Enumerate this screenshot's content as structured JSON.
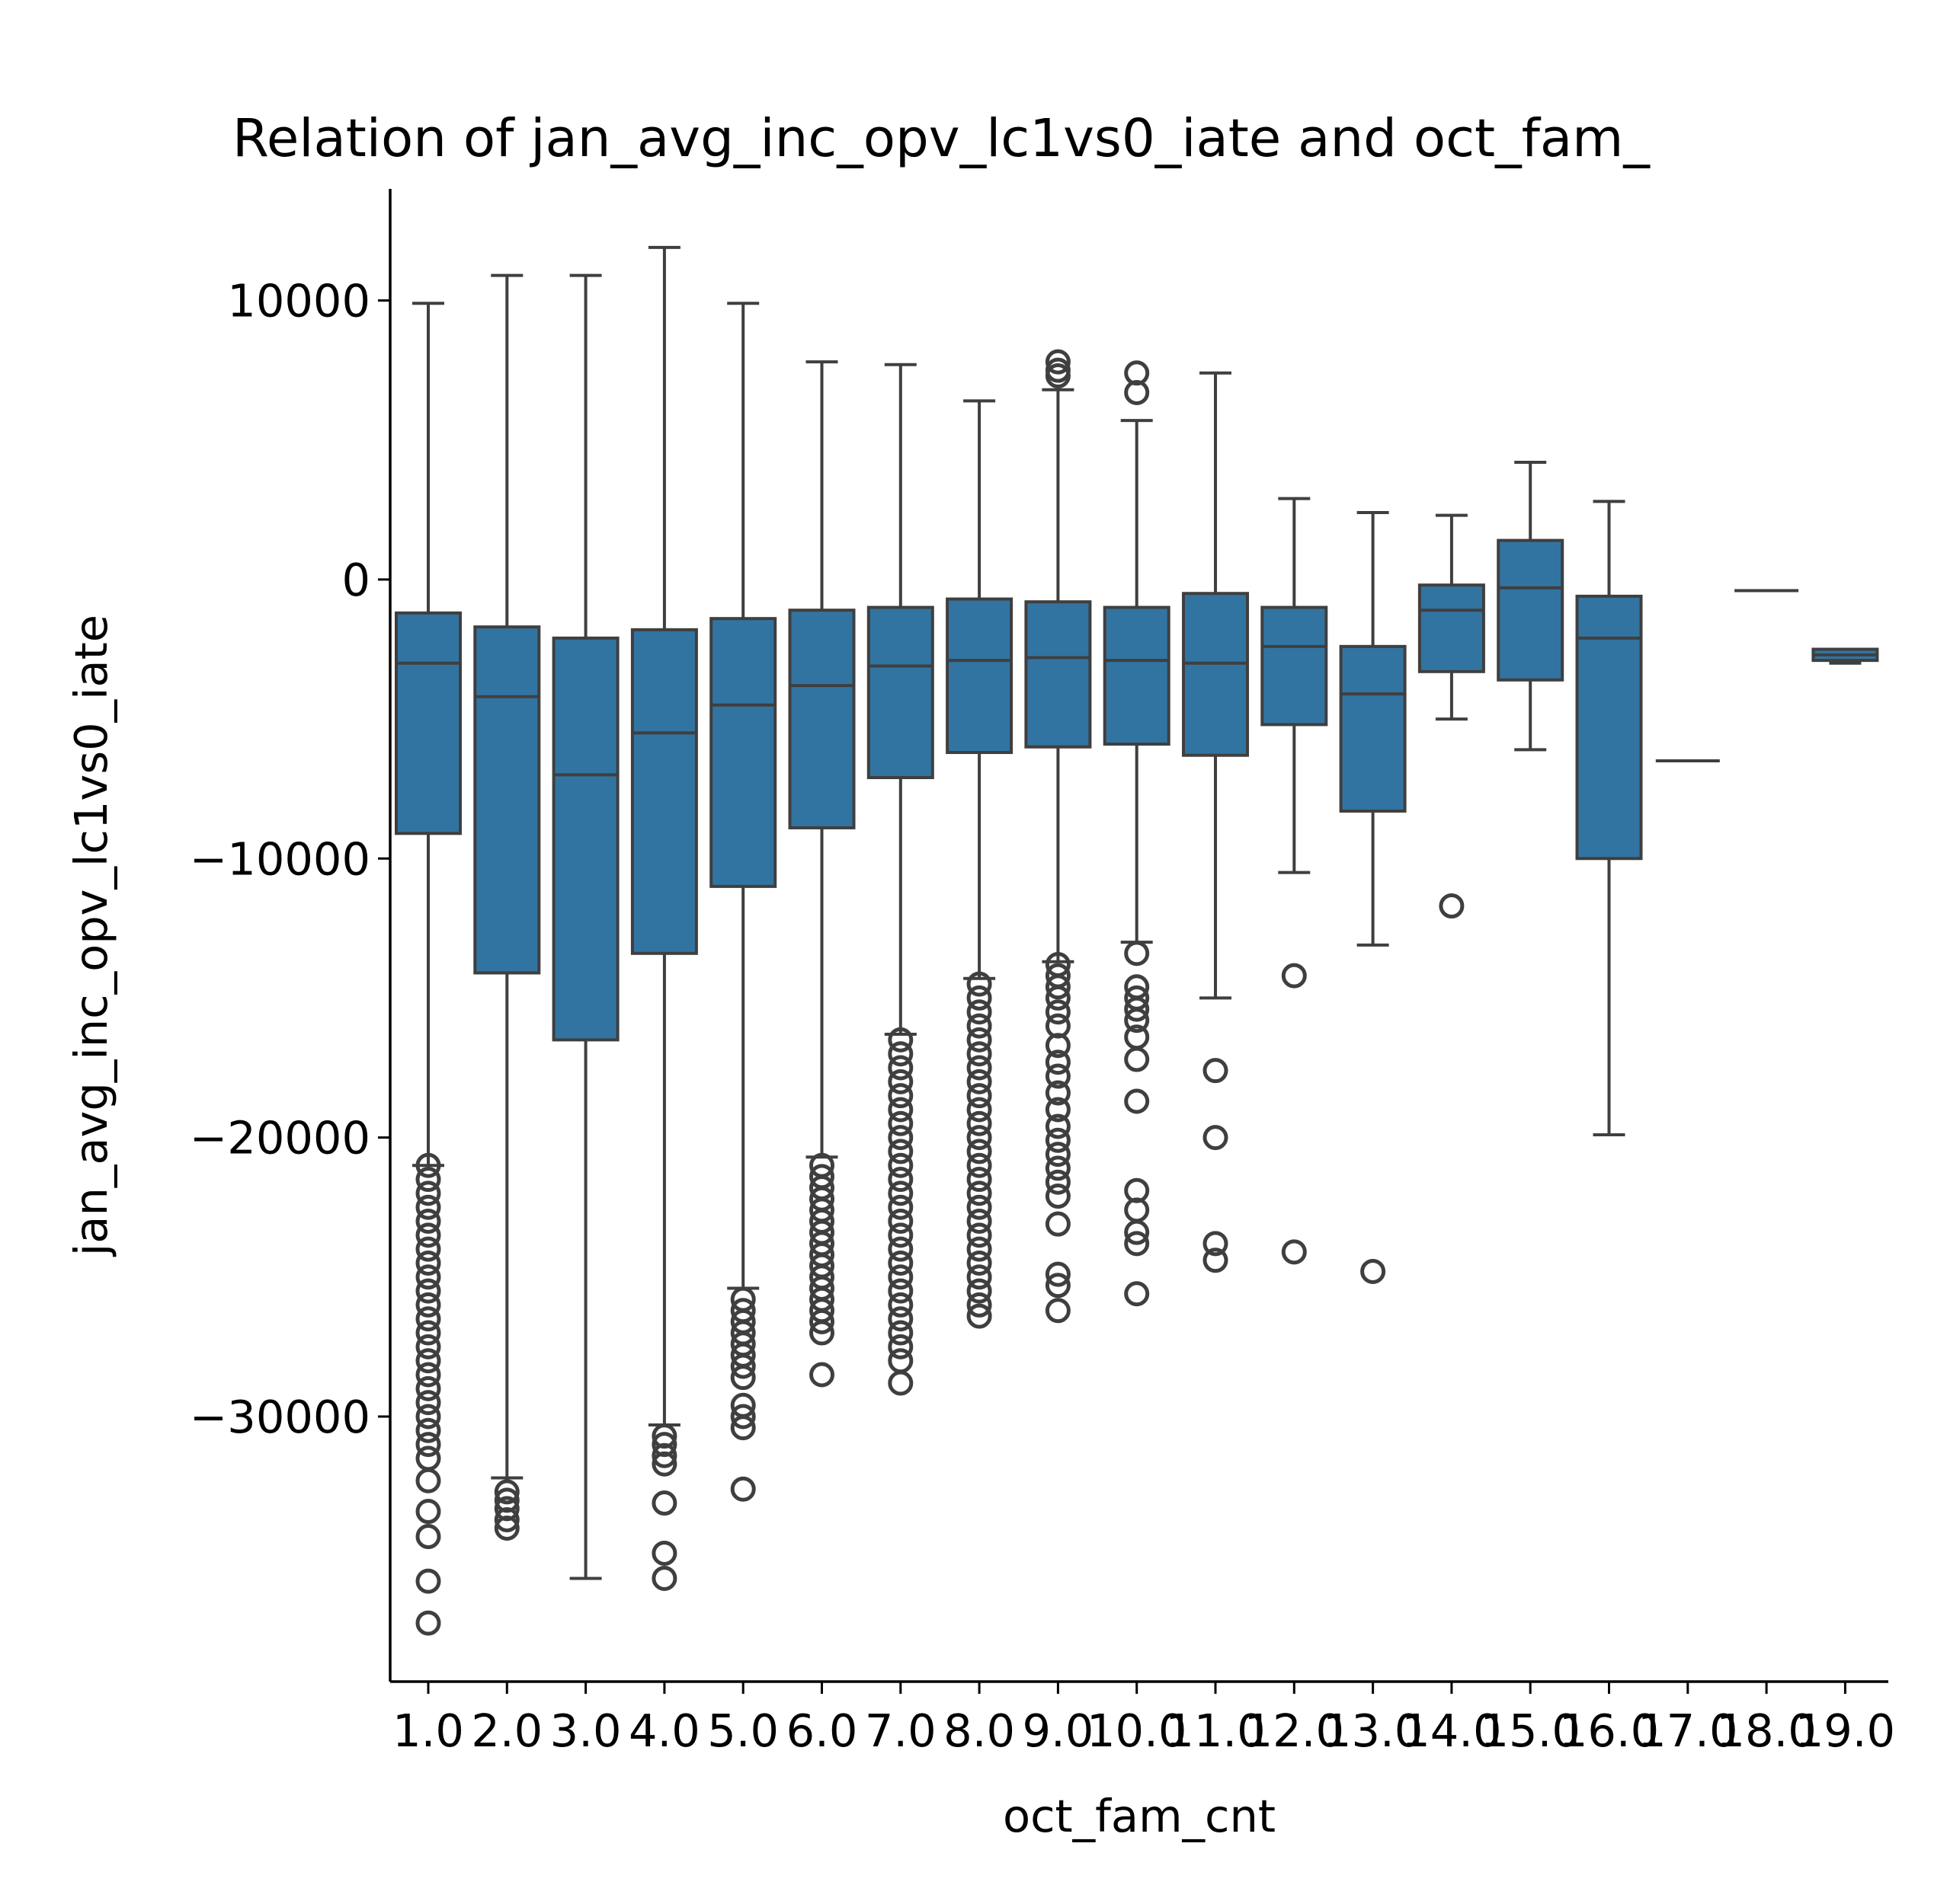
{
  "chart_data": {
    "type": "box",
    "title": "Relation of jan_avg_inc_opv_lc1vs0_iate and oct_fam_",
    "xlabel": "oct_fam_cnt",
    "ylabel": "jan_avg_inc_opv_lc1vs0_iate",
    "ylim": [
      -39500,
      14000
    ],
    "yticks": [
      10000,
      0,
      -10000,
      -20000,
      -30000
    ],
    "ytick_labels": [
      "10000",
      "0",
      "−10000",
      "−20000",
      "−30000"
    ],
    "grid": false,
    "box_color": "#3274a1",
    "edge_color": "#3f3f3f",
    "categories": [
      "1.0",
      "2.0",
      "3.0",
      "4.0",
      "5.0",
      "6.0",
      "7.0",
      "8.0",
      "9.0",
      "10.0",
      "11.0",
      "12.0",
      "13.0",
      "14.0",
      "15.0",
      "16.0",
      "17.0",
      "18.0",
      "19.0"
    ],
    "boxes": [
      {
        "whislo": -21000,
        "q1": -9100,
        "med": -3000,
        "q3": -1200,
        "whishi": 9900,
        "fliers": [
          -21000,
          -21500,
          -22000,
          -22500,
          -23000,
          -23500,
          -24000,
          -24500,
          -25000,
          -25500,
          -26000,
          -26500,
          -27000,
          -27500,
          -28000,
          -28500,
          -29000,
          -29500,
          -30000,
          -30500,
          -31000,
          -31500,
          -32300,
          -33400,
          -34300,
          -35900,
          -37400
        ]
      },
      {
        "whislo": -32200,
        "q1": -14100,
        "med": -4200,
        "q3": -1700,
        "whishi": 10900,
        "fliers": [
          -32700,
          -33000,
          -33300,
          -33700,
          -34000
        ]
      },
      {
        "whislo": -35800,
        "q1": -16500,
        "med": -7000,
        "q3": -2100,
        "whishi": 10900,
        "fliers": []
      },
      {
        "whislo": -30300,
        "q1": -13400,
        "med": -5500,
        "q3": -1800,
        "whishi": 11900,
        "fliers": [
          -30700,
          -31000,
          -31400,
          -31700,
          -33100,
          -34900,
          -35800
        ]
      },
      {
        "whislo": -25400,
        "q1": -11000,
        "med": -4500,
        "q3": -1400,
        "whishi": 9900,
        "fliers": [
          -25800,
          -26200,
          -26600,
          -27000,
          -27400,
          -27800,
          -28200,
          -28600,
          -29600,
          -30000,
          -30400,
          -32600
        ]
      },
      {
        "whislo": -20700,
        "q1": -8900,
        "med": -3800,
        "q3": -1100,
        "whishi": 7800,
        "fliers": [
          -21000,
          -21400,
          -21800,
          -22200,
          -22600,
          -23000,
          -23400,
          -23800,
          -24200,
          -24600,
          -25000,
          -25400,
          -25800,
          -26200,
          -26600,
          -27000,
          -28500
        ]
      },
      {
        "whislo": -16300,
        "q1": -7100,
        "med": -3100,
        "q3": -1000,
        "whishi": 7700,
        "fliers": [
          -16500,
          -17000,
          -17500,
          -18000,
          -18500,
          -19000,
          -19500,
          -20000,
          -20500,
          -21000,
          -21500,
          -22000,
          -22500,
          -23000,
          -23500,
          -24000,
          -24500,
          -25000,
          -25500,
          -26000,
          -26500,
          -27000,
          -27500,
          -28000,
          -28800
        ]
      },
      {
        "whislo": -14300,
        "q1": -6200,
        "med": -2900,
        "q3": -700,
        "whishi": 6400,
        "fliers": [
          -14500,
          -15000,
          -15500,
          -16000,
          -16500,
          -17000,
          -17500,
          -18000,
          -18500,
          -19000,
          -19500,
          -20000,
          -20500,
          -21000,
          -21500,
          -22000,
          -22500,
          -23000,
          -23500,
          -24000,
          -24500,
          -25000,
          -25500,
          -26000,
          -26400
        ]
      },
      {
        "whislo": -13700,
        "q1": -6000,
        "med": -2800,
        "q3": -800,
        "whishi": 6800,
        "fliers": [
          7300,
          7500,
          7800,
          -13800,
          -14200,
          -14600,
          -15000,
          -15500,
          -16000,
          -16700,
          -17300,
          -17800,
          -18400,
          -19000,
          -19600,
          -20100,
          -20600,
          -21100,
          -21600,
          -22100,
          -23100,
          -24900,
          -25300,
          -26200
        ]
      },
      {
        "whislo": -13000,
        "q1": -5900,
        "med": -2900,
        "q3": -1000,
        "whishi": 5700,
        "fliers": [
          6700,
          7400,
          -13400,
          -14600,
          -15000,
          -15400,
          -15800,
          -16400,
          -17200,
          -18700,
          -21900,
          -22600,
          -23400,
          -23800,
          -25600
        ]
      },
      {
        "whislo": -15000,
        "q1": -6300,
        "med": -3000,
        "q3": -500,
        "whishi": 7400,
        "fliers": [
          -17600,
          -20000,
          -23800,
          -24400
        ]
      },
      {
        "whislo": -10500,
        "q1": -5200,
        "med": -2400,
        "q3": -1000,
        "whishi": 2900,
        "fliers": [
          -14200,
          -24100
        ]
      },
      {
        "whislo": -13100,
        "q1": -8300,
        "med": -4100,
        "q3": -2400,
        "whishi": 2400,
        "fliers": [
          -24800
        ]
      },
      {
        "whislo": -5000,
        "q1": -3300,
        "med": -1100,
        "q3": -200,
        "whishi": 2300,
        "fliers": [
          -11700
        ]
      },
      {
        "whislo": -6100,
        "q1": -3600,
        "med": -300,
        "q3": 1400,
        "whishi": 4200,
        "fliers": []
      },
      {
        "whislo": -19900,
        "q1": -10000,
        "med": -2100,
        "q3": -600,
        "whishi": 2800,
        "fliers": []
      },
      {
        "whislo": -6500,
        "q1": -6500,
        "med": -6500,
        "q3": -6500,
        "whishi": -6500,
        "fliers": []
      },
      {
        "whislo": -400,
        "q1": -400,
        "med": -400,
        "q3": -400,
        "whishi": -400,
        "fliers": []
      },
      {
        "whislo": -3000,
        "q1": -2900,
        "med": -2700,
        "q3": -2500,
        "whishi": -2500,
        "fliers": []
      }
    ]
  }
}
